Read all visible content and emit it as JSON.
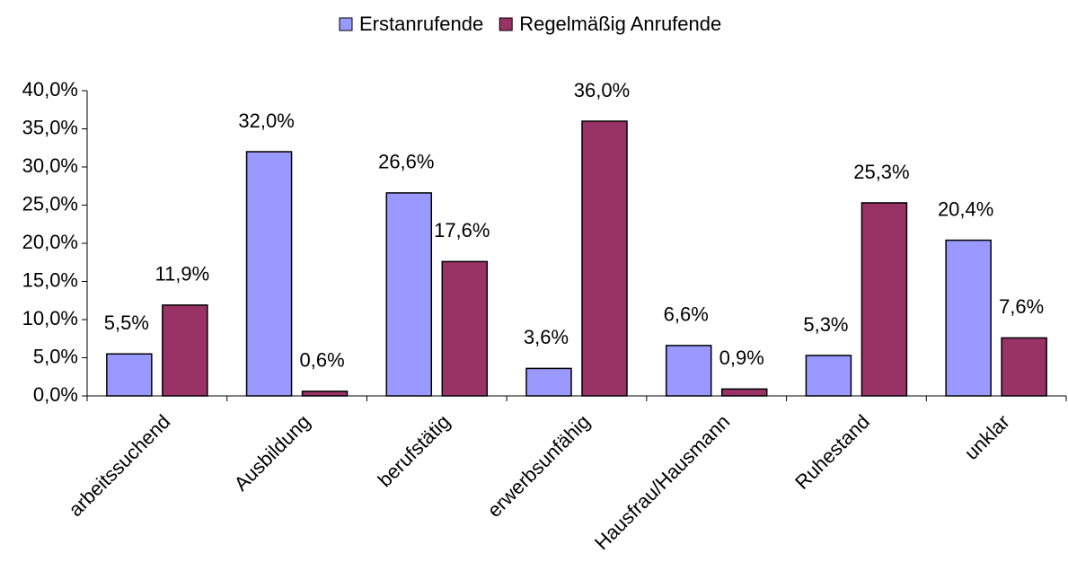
{
  "chart_data": {
    "type": "bar",
    "categories": [
      "arbeitssuchend",
      "Ausbildung",
      "berufstätig",
      "erwerbsunfähig",
      "Hausfrau/Hausmann",
      "Ruhestand",
      "unklar"
    ],
    "series": [
      {
        "name": "Erstanrufende",
        "color": "#9999ff",
        "values": [
          5.5,
          32.0,
          26.6,
          3.6,
          6.6,
          5.3,
          20.4
        ],
        "value_labels": [
          "5,5%",
          "32,0%",
          "26,6%",
          "3,6%",
          "6,6%",
          "5,3%",
          "20,4%"
        ]
      },
      {
        "name": "Regelmäßig Anrufende",
        "color": "#993366",
        "values": [
          11.9,
          0.6,
          17.6,
          36.0,
          0.9,
          25.3,
          7.6
        ],
        "value_labels": [
          "11,9%",
          "0,6%",
          "17,6%",
          "36,0%",
          "0,9%",
          "25,3%",
          "7,6%"
        ]
      }
    ],
    "ylim": [
      0,
      40
    ],
    "yticks": [
      {
        "value": 0,
        "label": "0,0%"
      },
      {
        "value": 5,
        "label": "5,0%"
      },
      {
        "value": 10,
        "label": "10,0%"
      },
      {
        "value": 15,
        "label": "15,0%"
      },
      {
        "value": 20,
        "label": "20,0%"
      },
      {
        "value": 25,
        "label": "25,0%"
      },
      {
        "value": 30,
        "label": "30,0%"
      },
      {
        "value": 35,
        "label": "35,0%"
      },
      {
        "value": 40,
        "label": "40,0%"
      }
    ],
    "grid": false,
    "legend": "top"
  }
}
